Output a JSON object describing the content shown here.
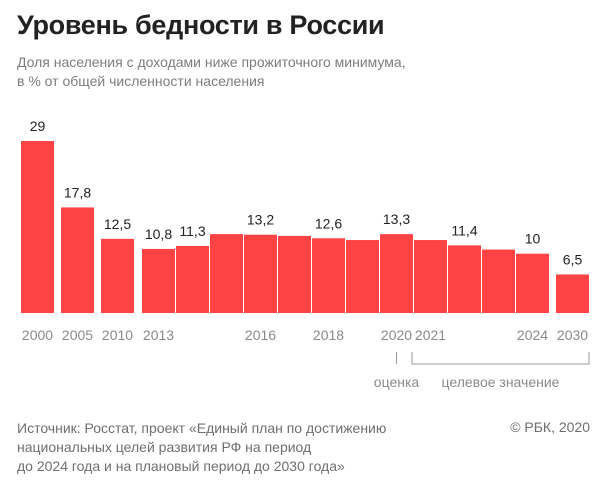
{
  "title": "Уровень бедности в России",
  "subtitle": [
    "Доля населения с доходами ниже прожиточного минимума,",
    "в % от общей численности населения"
  ],
  "colors": {
    "bar": "#ff4344",
    "value_label": "#222222",
    "tick_label": "#8a8a8a",
    "bracket": "#9a9a9a"
  },
  "chart_data": {
    "type": "bar",
    "categories": [
      "2000",
      "2005",
      "2010",
      "2013",
      "2014",
      "2015",
      "2016",
      "2017",
      "2018",
      "2019",
      "2020",
      "2021",
      "2022",
      "2023",
      "2024",
      "2030"
    ],
    "values": [
      29,
      17.8,
      12.5,
      10.8,
      11.3,
      13.3,
      13.2,
      13.0,
      12.6,
      12.3,
      13.3,
      12.3,
      11.4,
      10.7,
      10,
      6.5
    ],
    "value_labels": [
      "29",
      "17,8",
      "12,5",
      "10,8",
      "11,3",
      "",
      "13,2",
      "",
      "12,6",
      "",
      "13,3",
      "",
      "11,4",
      "",
      "10",
      "6,5"
    ],
    "tick_labels": [
      "2000",
      "2005",
      "2010",
      "2013",
      "",
      "",
      "2016",
      "",
      "2018",
      "",
      "2020",
      "2021",
      "",
      "",
      "2024",
      "2030"
    ],
    "annotations": [
      "оценка",
      "целевое значение"
    ],
    "ylim": [
      0,
      29
    ],
    "grid": false,
    "legend": "none"
  },
  "footer": {
    "source": [
      "Источник: Росстат, проект «Единый план по достижению",
      "национальных целей развития РФ на период",
      "до 2024 года и на плановый период до 2030 года»"
    ],
    "copyright": "© РБК, 2020"
  }
}
